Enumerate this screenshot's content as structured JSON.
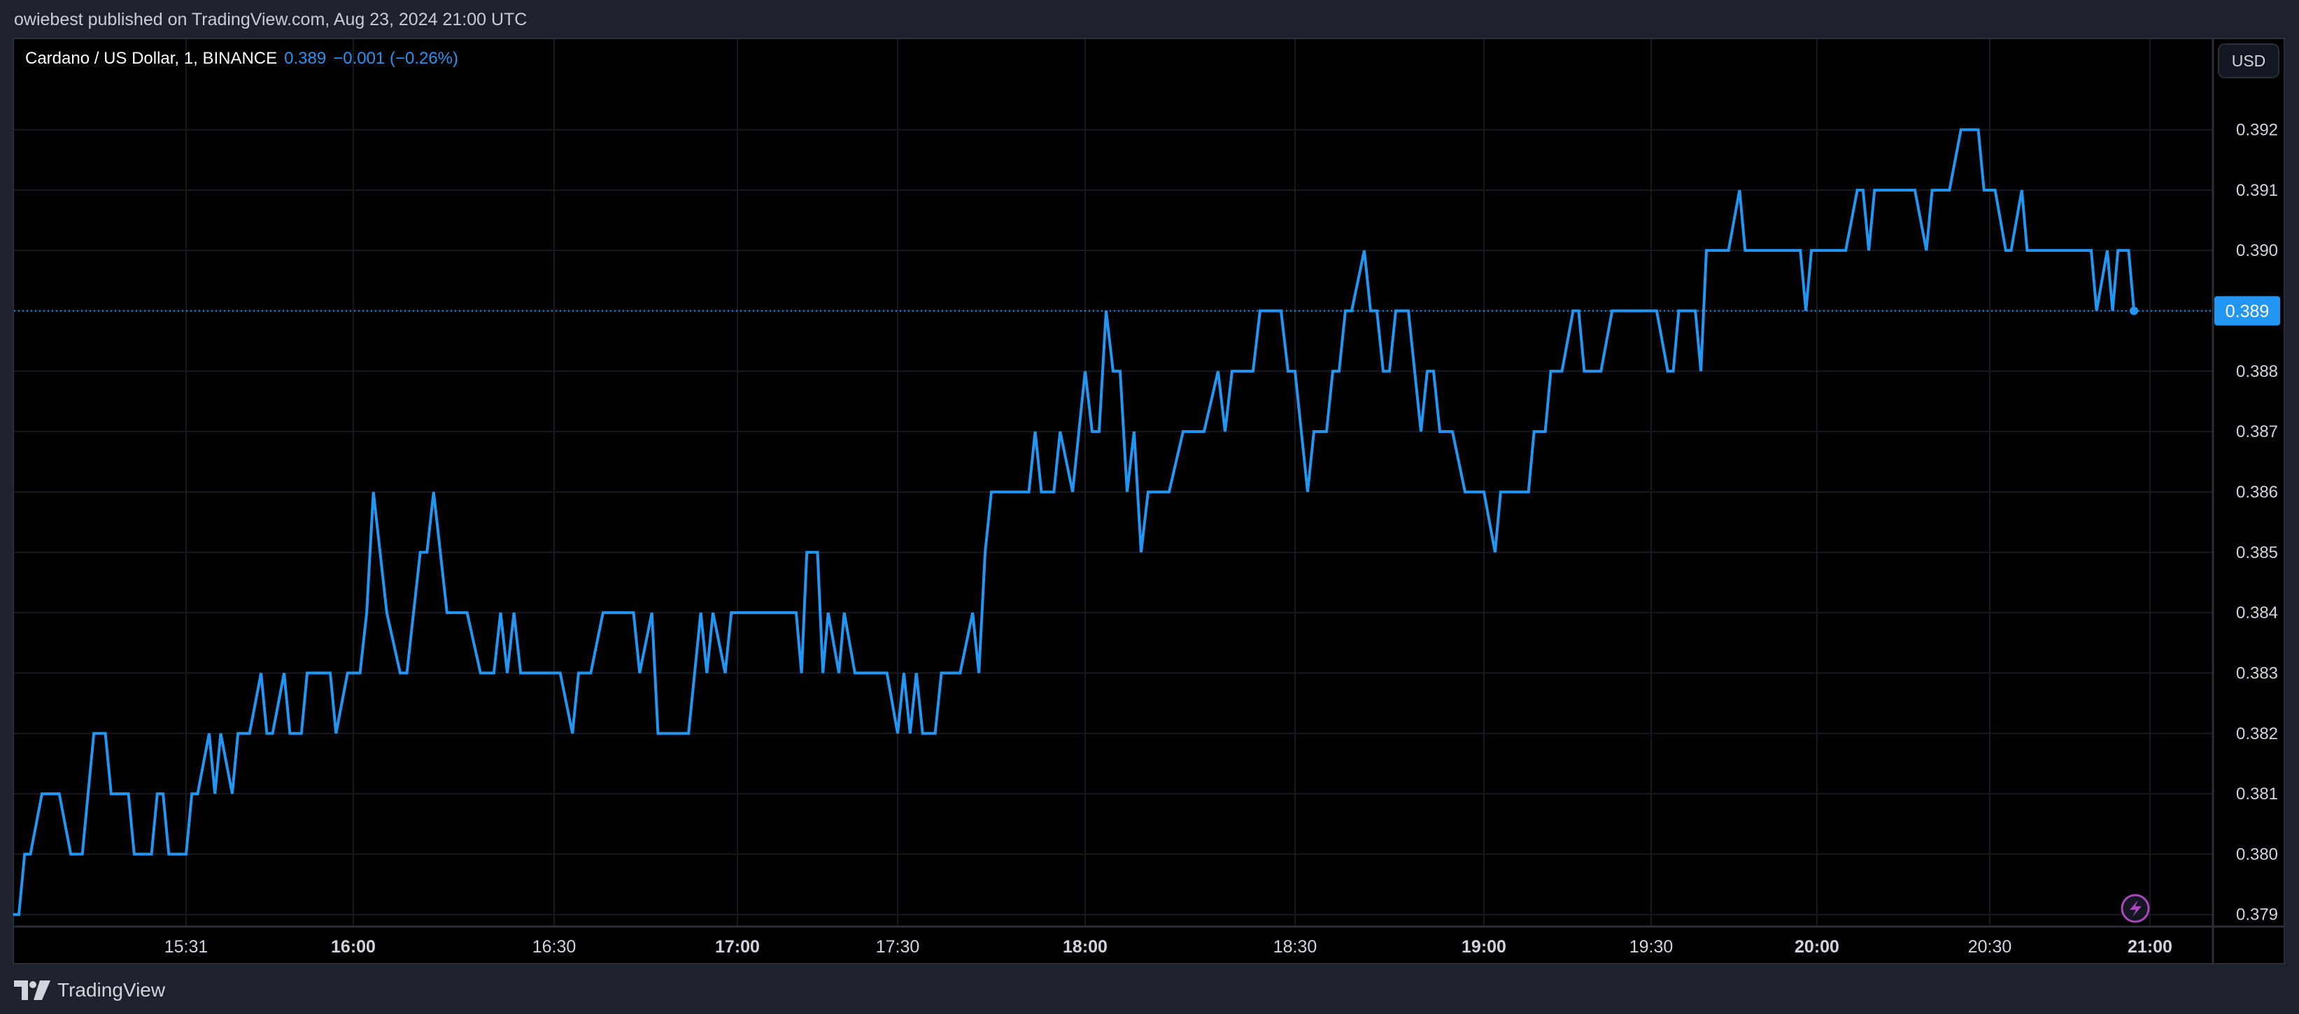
{
  "header": {
    "published": "owiebest published on TradingView.com, Aug 23, 2024 21:00 UTC"
  },
  "legend": {
    "symbol": "Cardano / US Dollar, 1, BINANCE",
    "last": "0.389",
    "change": "−0.001 (−0.26%)"
  },
  "currency_button": "USD",
  "footer": {
    "brand": "TradingView",
    "logo_icon": "tradingview-logo-icon"
  },
  "icons": {
    "bolt": "lightning-bolt-icon"
  },
  "colors": {
    "line": "#2196f3",
    "background": "#000000",
    "grid": "#161a20",
    "badge": "#2196f3",
    "bolt": "#ab47bc"
  },
  "chart_data": {
    "type": "line",
    "title": "",
    "xlabel": "",
    "ylabel": "",
    "ylim": [
      0.3788,
      0.3935
    ],
    "grid": true,
    "current_price": {
      "value": 0.389,
      "label": "0.389"
    },
    "y_ticks": [
      "0.379",
      "0.380",
      "0.381",
      "0.382",
      "0.383",
      "0.384",
      "0.385",
      "0.386",
      "0.387",
      "0.388",
      "0.389",
      "0.390",
      "0.391",
      "0.392"
    ],
    "x_ticks": [
      {
        "label": "15:31",
        "bold": false
      },
      {
        "label": "16:00",
        "bold": true
      },
      {
        "label": "16:30",
        "bold": false
      },
      {
        "label": "17:00",
        "bold": true
      },
      {
        "label": "17:30",
        "bold": false
      },
      {
        "label": "18:00",
        "bold": true
      },
      {
        "label": "18:30",
        "bold": false
      },
      {
        "label": "19:00",
        "bold": true
      },
      {
        "label": "19:30",
        "bold": false
      },
      {
        "label": "20:00",
        "bold": true
      },
      {
        "label": "20:30",
        "bold": false
      },
      {
        "label": "21:00",
        "bold": true
      }
    ],
    "points": [
      [
        "15:01",
        0.379
      ],
      [
        "15:02",
        0.379
      ],
      [
        "15:03",
        0.38
      ],
      [
        "15:04",
        0.38
      ],
      [
        "15:06",
        0.381
      ],
      [
        "15:09",
        0.381
      ],
      [
        "15:11",
        0.38
      ],
      [
        "15:13",
        0.38
      ],
      [
        "15:15",
        0.382
      ],
      [
        "15:17",
        0.382
      ],
      [
        "15:18",
        0.381
      ],
      [
        "15:21",
        0.381
      ],
      [
        "15:22",
        0.38
      ],
      [
        "15:25",
        0.38
      ],
      [
        "15:26",
        0.381
      ],
      [
        "15:27",
        0.381
      ],
      [
        "15:28",
        0.38
      ],
      [
        "15:31",
        0.38
      ],
      [
        "15:32",
        0.381
      ],
      [
        "15:33",
        0.381
      ],
      [
        "15:35",
        0.382
      ],
      [
        "15:36",
        0.381
      ],
      [
        "15:37",
        0.382
      ],
      [
        "15:39",
        0.381
      ],
      [
        "15:40",
        0.382
      ],
      [
        "15:42",
        0.382
      ],
      [
        "15:44",
        0.383
      ],
      [
        "15:45",
        0.382
      ],
      [
        "15:46",
        0.382
      ],
      [
        "15:48",
        0.383
      ],
      [
        "15:49",
        0.382
      ],
      [
        "15:51",
        0.382
      ],
      [
        "15:52",
        0.383
      ],
      [
        "15:56",
        0.383
      ],
      [
        "15:57",
        0.382
      ],
      [
        "15:59",
        0.383
      ],
      [
        "16:01",
        0.383
      ],
      [
        "16:02",
        0.384
      ],
      [
        "16:03",
        0.386
      ],
      [
        "16:04",
        0.385
      ],
      [
        "16:05",
        0.384
      ],
      [
        "16:07",
        0.383
      ],
      [
        "16:08",
        0.383
      ],
      [
        "16:09",
        0.384
      ],
      [
        "16:10",
        0.385
      ],
      [
        "16:11",
        0.385
      ],
      [
        "16:12",
        0.386
      ],
      [
        "16:13",
        0.385
      ],
      [
        "16:14",
        0.384
      ],
      [
        "16:17",
        0.384
      ],
      [
        "16:19",
        0.383
      ],
      [
        "16:21",
        0.383
      ],
      [
        "16:22",
        0.384
      ],
      [
        "16:23",
        0.383
      ],
      [
        "16:24",
        0.384
      ],
      [
        "16:25",
        0.383
      ],
      [
        "16:31",
        0.383
      ],
      [
        "16:33",
        0.382
      ],
      [
        "16:34",
        0.383
      ],
      [
        "16:36",
        0.383
      ],
      [
        "16:38",
        0.384
      ],
      [
        "16:43",
        0.384
      ],
      [
        "16:44",
        0.383
      ],
      [
        "16:46",
        0.384
      ],
      [
        "16:47",
        0.382
      ],
      [
        "16:52",
        0.382
      ],
      [
        "16:54",
        0.384
      ],
      [
        "16:55",
        0.383
      ],
      [
        "16:56",
        0.384
      ],
      [
        "16:58",
        0.383
      ],
      [
        "16:59",
        0.384
      ],
      [
        "17:11",
        0.384
      ],
      [
        "17:12",
        0.383
      ],
      [
        "17:13",
        0.385
      ],
      [
        "17:15",
        0.385
      ],
      [
        "17:16",
        0.383
      ],
      [
        "17:17",
        0.384
      ],
      [
        "17:19",
        0.383
      ],
      [
        "17:20",
        0.384
      ],
      [
        "17:22",
        0.383
      ],
      [
        "17:28",
        0.383
      ],
      [
        "17:30",
        0.382
      ],
      [
        "17:31",
        0.383
      ],
      [
        "17:32",
        0.382
      ],
      [
        "17:33",
        0.383
      ],
      [
        "17:34",
        0.382
      ],
      [
        "17:36",
        0.382
      ],
      [
        "17:37",
        0.383
      ],
      [
        "17:40",
        0.383
      ],
      [
        "17:42",
        0.384
      ],
      [
        "17:43",
        0.383
      ],
      [
        "17:44",
        0.385
      ],
      [
        "17:45",
        0.386
      ],
      [
        "17:51",
        0.386
      ],
      [
        "17:52",
        0.387
      ],
      [
        "17:53",
        0.386
      ],
      [
        "17:55",
        0.386
      ],
      [
        "17:56",
        0.387
      ],
      [
        "17:58",
        0.386
      ],
      [
        "18:00",
        0.388
      ],
      [
        "18:01",
        0.387
      ],
      [
        "18:02",
        0.387
      ],
      [
        "18:03",
        0.389
      ],
      [
        "18:04",
        0.388
      ],
      [
        "18:05",
        0.388
      ],
      [
        "18:06",
        0.386
      ],
      [
        "18:07",
        0.387
      ],
      [
        "18:08",
        0.385
      ],
      [
        "18:09",
        0.386
      ],
      [
        "18:12",
        0.386
      ],
      [
        "18:14",
        0.387
      ],
      [
        "18:17",
        0.387
      ],
      [
        "18:19",
        0.388
      ],
      [
        "18:20",
        0.387
      ],
      [
        "18:21",
        0.388
      ],
      [
        "18:24",
        0.388
      ],
      [
        "18:25",
        0.389
      ],
      [
        "18:28",
        0.389
      ],
      [
        "18:29",
        0.388
      ],
      [
        "18:30",
        0.388
      ],
      [
        "18:32",
        0.386
      ],
      [
        "18:33",
        0.387
      ],
      [
        "18:35",
        0.387
      ],
      [
        "18:36",
        0.388
      ],
      [
        "18:37",
        0.388
      ],
      [
        "18:38",
        0.389
      ],
      [
        "18:39",
        0.389
      ],
      [
        "18:41",
        0.39
      ],
      [
        "18:42",
        0.389
      ],
      [
        "18:43",
        0.389
      ],
      [
        "18:44",
        0.388
      ],
      [
        "18:45",
        0.388
      ],
      [
        "18:46",
        0.389
      ],
      [
        "18:48",
        0.389
      ],
      [
        "18:50",
        0.387
      ],
      [
        "18:51",
        0.388
      ],
      [
        "18:52",
        0.388
      ],
      [
        "18:53",
        0.387
      ],
      [
        "18:55",
        0.387
      ],
      [
        "18:57",
        0.386
      ],
      [
        "19:00",
        0.386
      ],
      [
        "19:02",
        0.385
      ],
      [
        "19:03",
        0.386
      ],
      [
        "19:08",
        0.386
      ],
      [
        "19:09",
        0.387
      ],
      [
        "19:11",
        0.387
      ],
      [
        "19:12",
        0.388
      ],
      [
        "19:14",
        0.388
      ],
      [
        "19:16",
        0.389
      ],
      [
        "19:17",
        0.389
      ],
      [
        "19:18",
        0.388
      ],
      [
        "19:21",
        0.388
      ],
      [
        "19:23",
        0.389
      ],
      [
        "19:31",
        0.389
      ],
      [
        "19:33",
        0.388
      ],
      [
        "19:34",
        0.388
      ],
      [
        "19:35",
        0.389
      ],
      [
        "19:38",
        0.389
      ],
      [
        "19:39",
        0.388
      ],
      [
        "19:40",
        0.39
      ],
      [
        "19:44",
        0.39
      ],
      [
        "19:46",
        0.391
      ],
      [
        "19:47",
        0.39
      ],
      [
        "19:57",
        0.39
      ],
      [
        "19:58",
        0.389
      ],
      [
        "19:59",
        0.39
      ],
      [
        "20:05",
        0.39
      ],
      [
        "20:07",
        0.391
      ],
      [
        "20:08",
        0.391
      ],
      [
        "20:09",
        0.39
      ],
      [
        "20:10",
        0.391
      ],
      [
        "20:17",
        0.391
      ],
      [
        "20:19",
        0.39
      ],
      [
        "20:20",
        0.391
      ],
      [
        "20:23",
        0.391
      ],
      [
        "20:25",
        0.392
      ],
      [
        "20:28",
        0.392
      ],
      [
        "20:29",
        0.391
      ],
      [
        "20:31",
        0.391
      ],
      [
        "20:33",
        0.39
      ],
      [
        "20:34",
        0.39
      ],
      [
        "20:36",
        0.391
      ],
      [
        "20:37",
        0.39
      ],
      [
        "20:49",
        0.39
      ],
      [
        "20:50",
        0.389
      ],
      [
        "20:52",
        0.39
      ],
      [
        "20:53",
        0.389
      ],
      [
        "20:54",
        0.39
      ],
      [
        "20:56",
        0.39
      ],
      [
        "20:57",
        0.389
      ]
    ]
  }
}
